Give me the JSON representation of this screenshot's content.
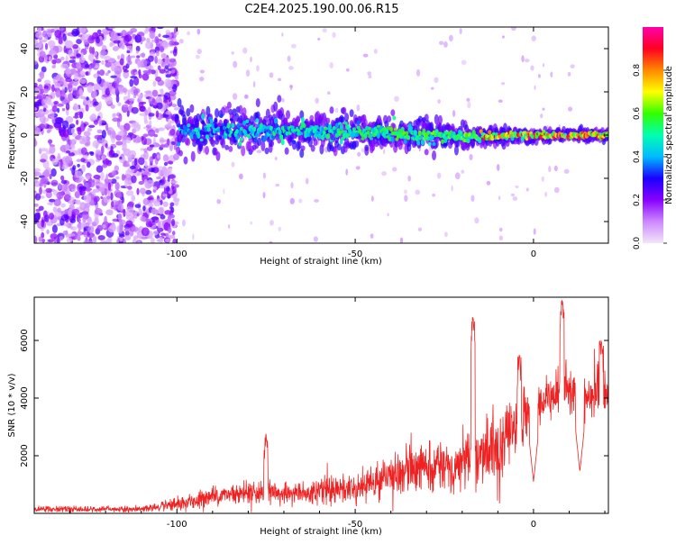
{
  "title": "C2E4.2025.190.00.06.R15",
  "chart_data": [
    {
      "type": "heatmap",
      "xlabel": "Height of straight line (km)",
      "ylabel": "Frequency (Hz)",
      "xlim": [
        -140,
        21
      ],
      "ylim": [
        -50,
        50
      ],
      "xticks": [
        -100,
        -50,
        0
      ],
      "xtick_labels": [
        "-100",
        "-50",
        "0"
      ],
      "yticks": [
        -40,
        -20,
        0,
        20,
        40
      ],
      "ytick_labels": [
        "-40",
        "-20",
        "0",
        "20",
        "40"
      ],
      "colorbar": {
        "label": "Normalized spectral amplitude",
        "range": [
          0,
          1
        ],
        "ticks": [
          0.0,
          0.2,
          0.4,
          0.6,
          0.8
        ],
        "tick_labels": [
          "0.0",
          "0.2",
          "0.4",
          "0.6",
          "0.8"
        ],
        "colors": [
          "#f2e6f8",
          "#cc88ff",
          "#8800ff",
          "#1a00ff",
          "#00bbff",
          "#00ffb0",
          "#33ff00",
          "#ffff00",
          "#ff8800",
          "#ff0022",
          "#ff00aa"
        ]
      },
      "features": {
        "noise_region_end_km": -100,
        "band_center_hz": [
          [
            -100,
            2
          ],
          [
            -80,
            2
          ],
          [
            -60,
            1.5
          ],
          [
            -40,
            1
          ],
          [
            -20,
            -1
          ],
          [
            0,
            0
          ],
          [
            20,
            0
          ]
        ],
        "band_halfwidth_hz": [
          [
            -100,
            9
          ],
          [
            -60,
            8
          ],
          [
            -30,
            6
          ],
          [
            -10,
            3
          ],
          [
            20,
            2
          ]
        ]
      },
      "grid": false
    },
    {
      "type": "line",
      "xlabel": "Height of straight line (km)",
      "ylabel": "SNR (10 * v/v)",
      "xlim": [
        -140,
        21
      ],
      "ylim": [
        0,
        7500
      ],
      "xticks": [
        -100,
        -50,
        0
      ],
      "xtick_labels": [
        "-100",
        "-50",
        "0"
      ],
      "yticks": [
        2000,
        4000,
        6000
      ],
      "ytick_labels": [
        "2000",
        "4000",
        "6000"
      ],
      "series": [
        {
          "color": "#ee2222",
          "trend_x": [
            -140,
            -110,
            -100,
            -90,
            -80,
            -70,
            -60,
            -50,
            -40,
            -30,
            -20,
            -10,
            -5,
            0,
            5,
            10,
            15,
            20
          ],
          "trend_y": [
            150,
            150,
            300,
            600,
            750,
            700,
            750,
            900,
            1300,
            1600,
            1800,
            2300,
            3000,
            3600,
            4200,
            4300,
            4000,
            4300
          ],
          "spread": [
            100,
            100,
            200,
            300,
            350,
            350,
            400,
            500,
            650,
            750,
            900,
            1200,
            1100,
            800,
            700,
            700,
            800,
            900
          ],
          "peaks": [
            [
              -75,
              2800
            ],
            [
              -17,
              6800
            ],
            [
              -4,
              5500
            ],
            [
              8,
              7400
            ],
            [
              19,
              6000
            ]
          ],
          "dips": [
            [
              0,
              1100
            ],
            [
              13,
              1450
            ]
          ]
        }
      ],
      "grid": false
    }
  ]
}
